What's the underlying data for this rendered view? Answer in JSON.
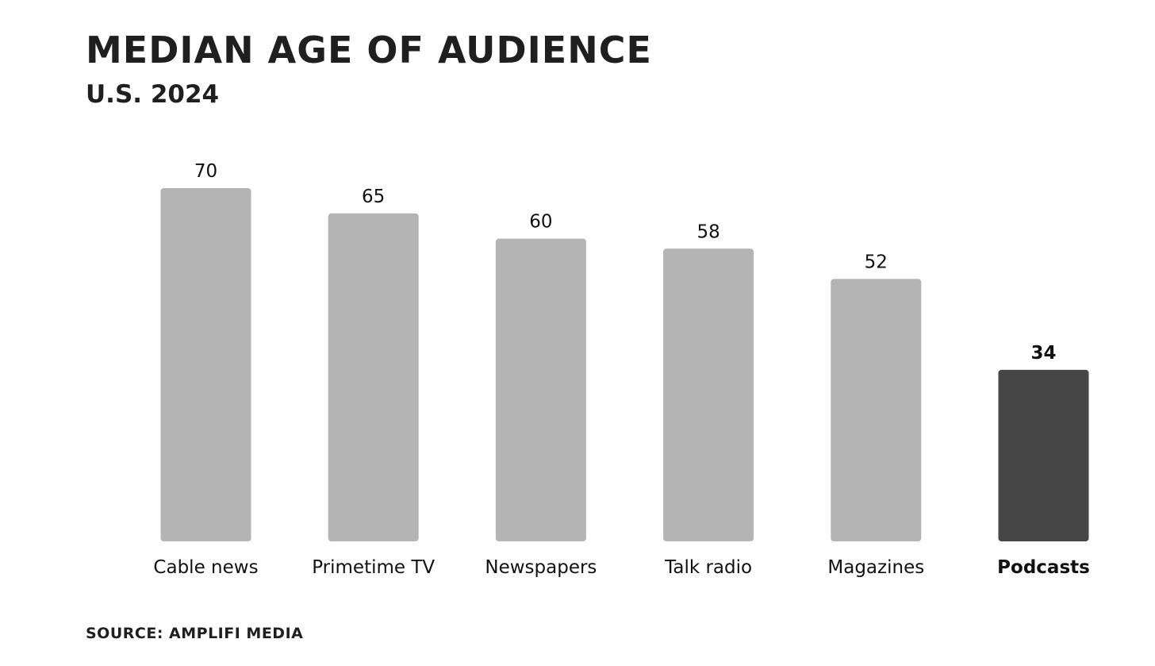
{
  "chart_data": {
    "type": "bar",
    "title": "MEDIAN AGE OF AUDIENCE",
    "subtitle": "U.S. 2024",
    "source": "SOURCE: AMPLIFI MEDIA",
    "categories": [
      "Cable news",
      "Primetime TV",
      "Newspapers",
      "Talk radio",
      "Magazines",
      "Podcasts"
    ],
    "values": [
      70,
      65,
      60,
      58,
      52,
      34
    ],
    "highlight_index": 5,
    "colors": {
      "bar": "#b5b4b5",
      "highlight_bar": "#464646"
    },
    "xlabel": "",
    "ylabel": "",
    "ylim": [
      0,
      70
    ],
    "grid": false,
    "legend": "none"
  }
}
